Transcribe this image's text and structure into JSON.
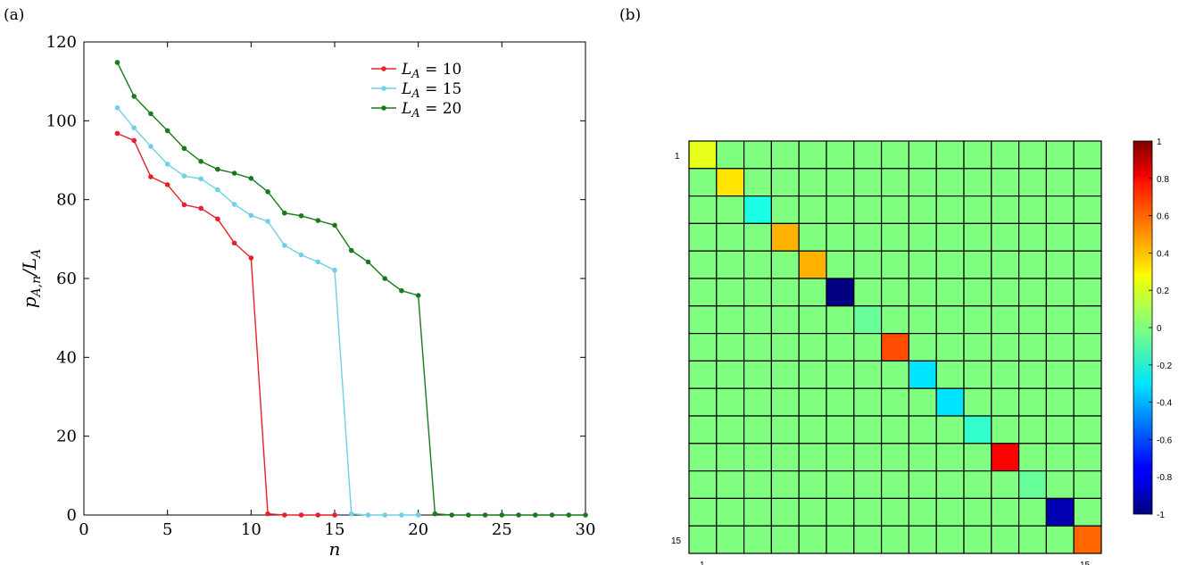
{
  "panels": {
    "a": "(a)",
    "b": "(b)"
  },
  "chart_data": [
    {
      "type": "line",
      "xlabel": "n",
      "ylabel": "p_{A,n}/L_A",
      "xlim": [
        0,
        30
      ],
      "ylim": [
        0,
        120
      ],
      "xticks": [
        0,
        5,
        10,
        15,
        20,
        25,
        30
      ],
      "yticks": [
        0,
        20,
        40,
        60,
        80,
        100,
        120
      ],
      "grid": false,
      "legend_position": "top-right",
      "series": [
        {
          "name": "L_A = 10",
          "color": "#e8202a",
          "x": [
            2,
            3,
            4,
            5,
            6,
            7,
            8,
            9,
            10,
            11,
            12,
            13,
            14,
            15
          ],
          "y": [
            96.8,
            95.0,
            85.8,
            83.8,
            78.7,
            77.8,
            75.1,
            69.0,
            65.2,
            0.3,
            0.0,
            0.0,
            0.0,
            0.0
          ]
        },
        {
          "name": "L_A = 15",
          "color": "#6fd0e8",
          "x": [
            2,
            3,
            4,
            5,
            6,
            7,
            8,
            9,
            10,
            11,
            12,
            13,
            14,
            15,
            16,
            17,
            18,
            19,
            20
          ],
          "y": [
            103.3,
            98.2,
            93.5,
            89.0,
            86.0,
            85.3,
            82.5,
            78.8,
            76.0,
            74.5,
            68.4,
            66.0,
            64.2,
            62.1,
            0.3,
            0.0,
            0.0,
            0.0,
            0.0
          ]
        },
        {
          "name": "L_A = 20",
          "color": "#1a7a1a",
          "x": [
            2,
            3,
            4,
            5,
            6,
            7,
            8,
            9,
            10,
            11,
            12,
            13,
            14,
            15,
            16,
            17,
            18,
            19,
            20,
            21,
            22,
            23,
            24,
            25,
            26,
            27,
            28,
            29,
            30
          ],
          "y": [
            114.8,
            106.2,
            101.8,
            97.5,
            93.0,
            89.7,
            87.7,
            86.7,
            85.4,
            82.0,
            76.6,
            75.9,
            74.7,
            73.5,
            67.1,
            64.2,
            60.0,
            56.9,
            55.7,
            0.3,
            0.0,
            0.0,
            0.0,
            0.0,
            0.0,
            0.0,
            0.0,
            0.0,
            0.0
          ]
        }
      ]
    },
    {
      "type": "heatmap",
      "size": 15,
      "row_labels": [
        "1",
        "15"
      ],
      "col_labels": [
        "1",
        "15"
      ],
      "diagonal": [
        0.2,
        0.3,
        -0.2,
        0.4,
        0.4,
        -1.0,
        -0.05,
        0.6,
        -0.3,
        -0.3,
        -0.15,
        0.75,
        -0.05,
        -0.9,
        0.55
      ],
      "off_diagonal": 0.0,
      "colorbar": {
        "min": -1,
        "max": 1,
        "ticks": [
          "1",
          "0.8",
          "0.6",
          "0.4",
          "0.2",
          "0",
          "-0.2",
          "-0.4",
          "-0.6",
          "-0.8",
          "-1"
        ]
      }
    }
  ]
}
